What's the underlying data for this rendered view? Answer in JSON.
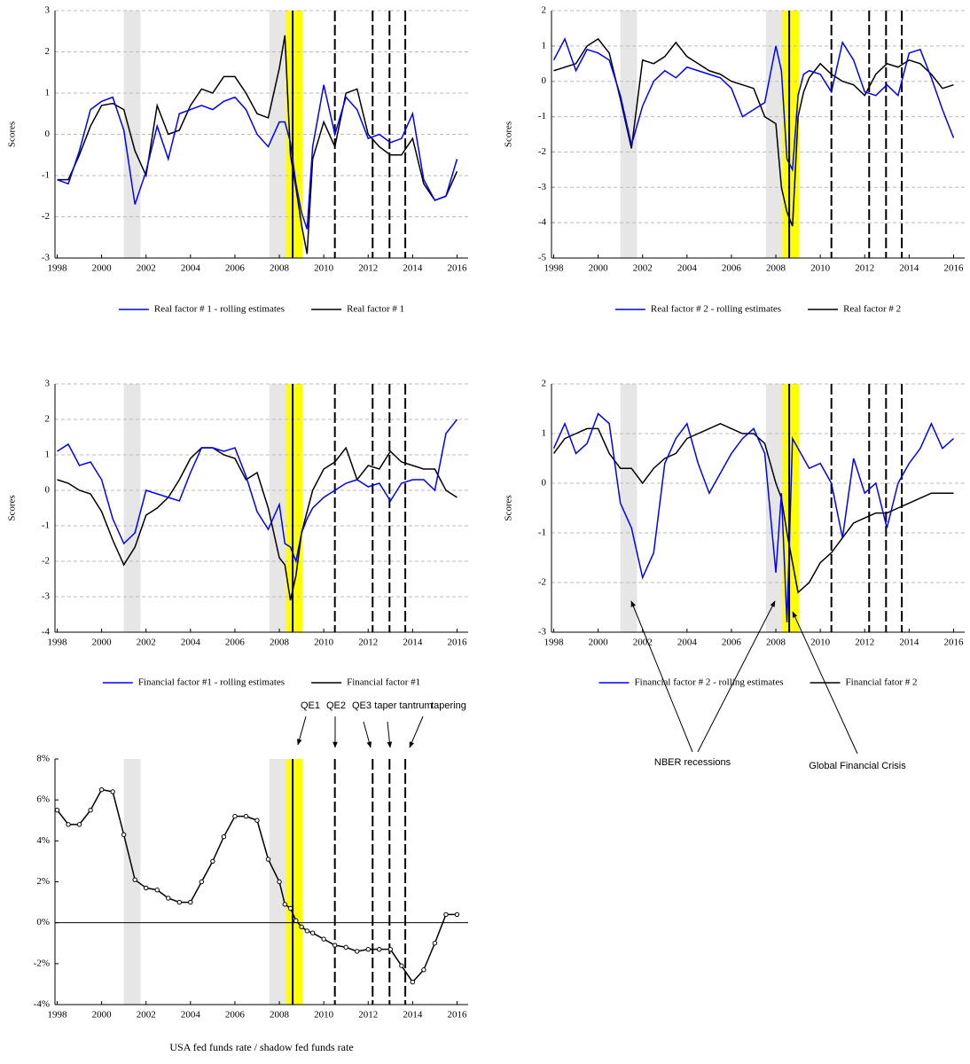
{
  "chart_data": [
    {
      "type": "line",
      "ylabel": "Scores",
      "xlim": [
        1997.9,
        2016.5
      ],
      "xticks": [
        1998,
        2000,
        2002,
        2004,
        2006,
        2008,
        2010,
        2012,
        2014,
        2016
      ],
      "ylim": [
        -3,
        3
      ],
      "yticks": [
        -3,
        -2,
        -1,
        0,
        1,
        2,
        3
      ],
      "grid": true,
      "x": [
        1998,
        1998.5,
        1999,
        1999.5,
        2000,
        2000.5,
        2001,
        2001.5,
        2002,
        2002.5,
        2003,
        2003.5,
        2004,
        2004.5,
        2005,
        2005.5,
        2006,
        2006.5,
        2007,
        2007.5,
        2008,
        2008.25,
        2008.5,
        2008.75,
        2009,
        2009.25,
        2009.5,
        2010,
        2010.5,
        2011,
        2011.5,
        2012,
        2012.5,
        2013,
        2013.5,
        2014,
        2014.5,
        2015,
        2015.5,
        2016
      ],
      "series": [
        {
          "name": "Real factor # 1 - rolling estimates",
          "color": "#0000ff",
          "values": [
            -1.1,
            -1.2,
            -0.4,
            0.6,
            0.8,
            0.9,
            0.1,
            -1.7,
            -0.9,
            0.2,
            -0.6,
            0.5,
            0.6,
            0.7,
            0.6,
            0.8,
            0.9,
            0.6,
            0,
            -0.3,
            0.3,
            0.3,
            -0.2,
            -1.2,
            -1.9,
            -2.3,
            -0.3,
            1.2,
            0,
            0.9,
            0.6,
            -0.1,
            0,
            -0.2,
            -0.1,
            0.5,
            -1.1,
            -1.6,
            -1.5,
            -0.6
          ]
        },
        {
          "name": "Real factor # 1",
          "color": "#000000",
          "values": [
            -1.1,
            -1.1,
            -0.5,
            0.2,
            0.7,
            0.75,
            0.6,
            -0.4,
            -1,
            0.7,
            0,
            0.1,
            0.7,
            1.1,
            1,
            1.4,
            1.4,
            1,
            0.5,
            0.4,
            1.6,
            2.4,
            -0.5,
            -1.3,
            -2.2,
            -2.9,
            -0.6,
            0.3,
            -0.3,
            1,
            1.1,
            0,
            -0.3,
            -0.5,
            -0.5,
            -0.1,
            -1.2,
            -1.6,
            -1.5,
            -0.9
          ]
        }
      ]
    },
    {
      "type": "line",
      "ylabel": "Scores",
      "xlim": [
        1997.9,
        2016.5
      ],
      "xticks": [
        1998,
        2000,
        2002,
        2004,
        2006,
        2008,
        2010,
        2012,
        2014,
        2016
      ],
      "ylim": [
        -5,
        2
      ],
      "yticks": [
        -5,
        -4,
        -3,
        -2,
        -1,
        0,
        1,
        2
      ],
      "grid": true,
      "x": [
        1998,
        1998.5,
        1999,
        1999.5,
        2000,
        2000.5,
        2001,
        2001.5,
        2002,
        2002.5,
        2003,
        2003.5,
        2004,
        2004.5,
        2005,
        2005.5,
        2006,
        2006.5,
        2007,
        2007.5,
        2008,
        2008.25,
        2008.5,
        2008.75,
        2009,
        2009.25,
        2009.5,
        2010,
        2010.5,
        2011,
        2011.5,
        2012,
        2012.5,
        2013,
        2013.5,
        2014,
        2014.5,
        2015,
        2015.5,
        2016
      ],
      "series": [
        {
          "name": "Real factor # 2 - rolling estimates",
          "color": "#0000ff",
          "values": [
            0.6,
            1.2,
            0.3,
            0.9,
            0.8,
            0.6,
            -0.4,
            -1.8,
            -0.7,
            0,
            0.3,
            0.1,
            0.4,
            0.3,
            0.2,
            0.1,
            -0.2,
            -1,
            -0.8,
            -0.6,
            1,
            0.3,
            -2.2,
            -2.5,
            -0.4,
            0.2,
            0.3,
            0.2,
            -0.3,
            1.1,
            0.6,
            -0.3,
            -0.4,
            -0.1,
            -0.4,
            0.8,
            0.9,
            0.1,
            -0.8,
            -1.6
          ]
        },
        {
          "name": "Real factor # 2",
          "color": "#000000",
          "values": [
            0.3,
            0.4,
            0.5,
            1,
            1.2,
            0.8,
            -0.5,
            -1.9,
            0.6,
            0.5,
            0.7,
            1.1,
            0.7,
            0.5,
            0.3,
            0.2,
            0,
            -0.1,
            -0.2,
            -1,
            -1.2,
            -3,
            -3.7,
            -4.1,
            -1,
            -0.3,
            0.1,
            0.5,
            0.2,
            0,
            -0.1,
            -0.4,
            0.2,
            0.5,
            0.4,
            0.6,
            0.5,
            0.2,
            -0.2,
            -0.1
          ]
        }
      ]
    },
    {
      "type": "line",
      "ylabel": "Scores",
      "xlim": [
        1997.9,
        2016.5
      ],
      "xticks": [
        1998,
        2000,
        2002,
        2004,
        2006,
        2008,
        2010,
        2012,
        2014,
        2016
      ],
      "ylim": [
        -4,
        3
      ],
      "yticks": [
        -4,
        -3,
        -2,
        -1,
        0,
        1,
        2,
        3
      ],
      "grid": true,
      "x": [
        1998,
        1998.5,
        1999,
        1999.5,
        2000,
        2000.5,
        2001,
        2001.5,
        2002,
        2002.5,
        2003,
        2003.5,
        2004,
        2004.5,
        2005,
        2005.5,
        2006,
        2006.5,
        2007,
        2007.5,
        2008,
        2008.25,
        2008.5,
        2008.75,
        2009,
        2009.25,
        2009.5,
        2010,
        2010.5,
        2011,
        2011.5,
        2012,
        2012.5,
        2013,
        2013.5,
        2014,
        2014.5,
        2015,
        2015.5,
        2016
      ],
      "series": [
        {
          "name": "Financial factor #1 - rolling estimates",
          "color": "#0000ff",
          "values": [
            1.1,
            1.3,
            0.7,
            0.8,
            0.3,
            -0.8,
            -1.5,
            -1.2,
            0,
            -0.1,
            -0.2,
            -0.3,
            0.5,
            1.2,
            1.2,
            1.1,
            1.2,
            0.4,
            -0.6,
            -1.1,
            -0.4,
            -1.5,
            -1.6,
            -2,
            -1.2,
            -0.8,
            -0.5,
            -0.2,
            0,
            0.2,
            0.3,
            0.1,
            0.2,
            -0.3,
            0.2,
            0.3,
            0.3,
            0,
            1.6,
            2
          ]
        },
        {
          "name": "Financial factor #1",
          "color": "#000000",
          "values": [
            0.3,
            0.2,
            0,
            -0.1,
            -0.6,
            -1.4,
            -2.1,
            -1.6,
            -0.7,
            -0.5,
            -0.2,
            0.3,
            0.9,
            1.2,
            1.2,
            1,
            0.9,
            0.3,
            0.5,
            -0.5,
            -1.9,
            -2.1,
            -3.1,
            -2.4,
            -1.2,
            -0.6,
            0,
            0.6,
            0.8,
            1.2,
            0.3,
            0.7,
            0.6,
            1.1,
            0.8,
            0.7,
            0.6,
            0.6,
            0,
            -0.2
          ]
        }
      ]
    },
    {
      "type": "line",
      "ylabel": "Scores",
      "xlim": [
        1997.9,
        2016.5
      ],
      "xticks": [
        1998,
        2000,
        2002,
        2004,
        2006,
        2008,
        2010,
        2012,
        2014,
        2016
      ],
      "ylim": [
        -3,
        2
      ],
      "yticks": [
        -3,
        -2,
        -1,
        0,
        1,
        2
      ],
      "grid": true,
      "x": [
        1998,
        1998.5,
        1999,
        1999.5,
        2000,
        2000.5,
        2001,
        2001.5,
        2002,
        2002.5,
        2003,
        2003.5,
        2004,
        2004.5,
        2005,
        2005.5,
        2006,
        2006.5,
        2007,
        2007.5,
        2008,
        2008.25,
        2008.5,
        2008.75,
        2009,
        2009.25,
        2009.5,
        2010,
        2010.5,
        2011,
        2011.5,
        2012,
        2012.5,
        2013,
        2013.5,
        2014,
        2014.5,
        2015,
        2015.5,
        2016
      ],
      "series": [
        {
          "name": "Financial factor # 2 - rolling estimates",
          "color": "#0000ff",
          "values": [
            0.7,
            1.2,
            0.6,
            0.8,
            1.4,
            1.2,
            -0.4,
            -0.9,
            -1.9,
            -1.4,
            0.4,
            0.9,
            1.2,
            0.4,
            -0.2,
            0.2,
            0.6,
            0.9,
            1.1,
            0.6,
            -1.8,
            -0.2,
            -2.8,
            0.9,
            0.7,
            0.5,
            0.3,
            0.4,
            0,
            -1.1,
            0.5,
            -0.2,
            0,
            -0.9,
            0,
            0.4,
            0.7,
            1.2,
            0.7,
            0.9
          ]
        },
        {
          "name": "Financial fator # 2",
          "color": "#000000",
          "values": [
            0.6,
            0.9,
            1,
            1.1,
            1.1,
            0.6,
            0.3,
            0.3,
            0,
            0.3,
            0.5,
            0.6,
            0.9,
            1,
            1.1,
            1.2,
            1.1,
            1,
            1,
            0.8,
            0,
            -0.3,
            -1,
            -1.6,
            -2.2,
            -2.1,
            -2,
            -1.6,
            -1.4,
            -1.1,
            -0.8,
            -0.7,
            -0.6,
            -0.6,
            -0.5,
            -0.4,
            -0.3,
            -0.2,
            -0.2,
            -0.2
          ]
        }
      ]
    },
    {
      "type": "line",
      "title": "USA fed funds rate / shadow fed funds rate",
      "xlim": [
        1997.9,
        2016.5
      ],
      "xticks": [
        1998,
        2000,
        2002,
        2004,
        2006,
        2008,
        2010,
        2012,
        2014,
        2016
      ],
      "ylim": [
        -4,
        8
      ],
      "yticks": [
        {
          "value": -4,
          "label": "-4%"
        },
        {
          "value": -2,
          "label": "-2%"
        },
        {
          "value": 0,
          "label": "0%"
        },
        {
          "value": 2,
          "label": "2%"
        },
        {
          "value": 4,
          "label": "4%"
        },
        {
          "value": 6,
          "label": "6%"
        },
        {
          "value": 8,
          "label": "8%"
        }
      ],
      "grid": false,
      "zero_line": true,
      "markers": true,
      "x": [
        1998,
        1998.5,
        1999,
        1999.5,
        2000,
        2000.5,
        2001,
        2001.5,
        2002,
        2002.5,
        2003,
        2003.5,
        2004,
        2004.5,
        2005,
        2005.5,
        2006,
        2006.5,
        2007,
        2007.5,
        2008,
        2008.25,
        2008.5,
        2008.75,
        2009,
        2009.25,
        2009.5,
        2010,
        2010.5,
        2011,
        2011.5,
        2012,
        2012.5,
        2013,
        2013.5,
        2014,
        2014.5,
        2015,
        2015.5,
        2016
      ],
      "series": [
        {
          "color": "#000000",
          "values": [
            5.5,
            4.8,
            4.8,
            5.5,
            6.5,
            6.4,
            4.3,
            2.1,
            1.7,
            1.6,
            1.2,
            1,
            1,
            2,
            3,
            4.2,
            5.2,
            5.2,
            5,
            3.1,
            2,
            0.9,
            0.7,
            0.1,
            -0.2,
            -0.4,
            -0.5,
            -0.8,
            -1.1,
            -1.2,
            -1.4,
            -1.3,
            -1.3,
            -1.3,
            -2.1,
            -2.9,
            -2.3,
            -1,
            0.4,
            0.4
          ]
        }
      ]
    }
  ],
  "events": {
    "recessions": [
      [
        2001,
        2001.75
      ],
      [
        2007.55,
        2008.3
      ]
    ],
    "crisis": [
      2008.3,
      2009.05
    ],
    "policy_lines": [
      2008.6,
      2010.5,
      2012.2,
      2012.96,
      2013.67
    ]
  },
  "annotations": {
    "policy": [
      "QE1",
      "QE2",
      "QE3",
      "taper tantrum",
      "tapering"
    ],
    "nber": "NBER recessions",
    "gfc": "Global Financial Crisis"
  }
}
